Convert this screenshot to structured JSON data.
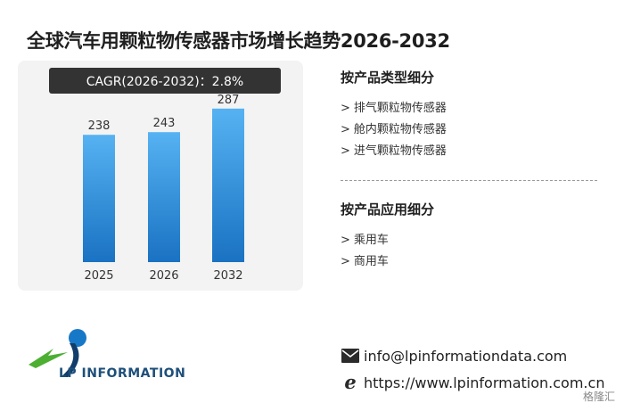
{
  "title": "全球汽车用颗粒物传感器市场增长趋势2026-2032",
  "cagr": "CAGR(2026-2032)：2.8%",
  "chart_data": {
    "type": "bar",
    "categories": [
      "2025",
      "2026",
      "2032"
    ],
    "values": [
      238,
      243,
      287
    ],
    "title": "",
    "xlabel": "",
    "ylabel": "",
    "ylim": [
      0,
      310
    ],
    "grid": false,
    "bar_color_top": "#56b2f2",
    "bar_color_bottom": "#1a72c2"
  },
  "product_type": {
    "heading": "按产品类型细分",
    "items": [
      "排气颗粒物传感器",
      "舱内颗粒物传感器",
      "进气颗粒物传感器"
    ]
  },
  "application": {
    "heading": "按产品应用细分",
    "items": [
      "乘用车",
      "商用车"
    ]
  },
  "bullet": ">",
  "logo": {
    "text": "LP INFORMATION"
  },
  "contact": {
    "email": "info@lpinformationdata.com",
    "website": "https://www.lpinformation.com.cn",
    "email_icon": "envelope-icon",
    "web_icon": "browser-e-icon"
  },
  "corner_mark": "格隆汇"
}
